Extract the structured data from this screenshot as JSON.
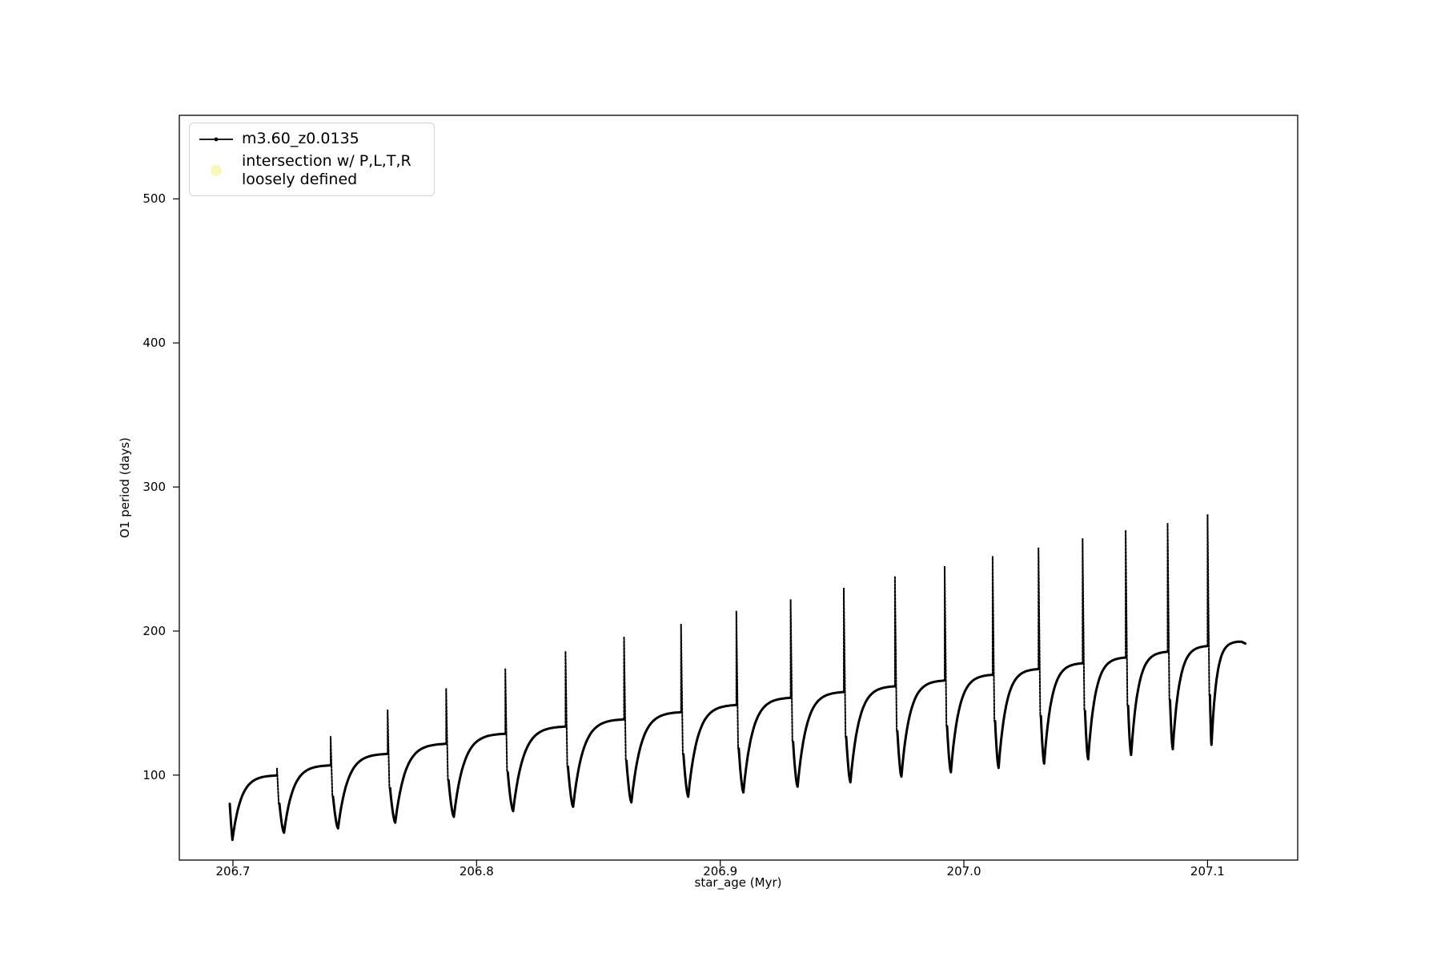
{
  "chart_data": {
    "type": "line",
    "title": "",
    "xlabel": "star_age (Myr)",
    "ylabel": "O1 period (days)",
    "xlim": [
      206.678,
      207.137
    ],
    "ylim": [
      41,
      558
    ],
    "grid": false,
    "legend_position": "upper left",
    "xticks": [
      206.7,
      206.8,
      206.9,
      207.0,
      207.1
    ],
    "xtick_labels": [
      "206.7",
      "206.8",
      "206.9",
      "207.0",
      "207.1"
    ],
    "yticks": [
      100,
      200,
      300,
      400,
      500
    ],
    "ytick_labels": [
      "100",
      "200",
      "300",
      "400",
      "500"
    ],
    "legend": {
      "entries": [
        {
          "type": "line-with-dot-marker",
          "color": "#000000",
          "label": "m3.60_z0.0135"
        },
        {
          "type": "scatter-circle",
          "color": "#faf7bd",
          "label_line1": "intersection w/ P,L,T,R",
          "label_line2": "loosely defined"
        }
      ]
    },
    "series": {
      "name": "m3.60_z0.0135",
      "color": "#000000",
      "description": "O1 pulsation period vs stellar age; sawtooth cycles: smooth saturating rise to a plateau, a narrow vertical spike up, then a sharp V-dip to a minimum before the next rise.",
      "start": {
        "age": 206.6987,
        "value": 80,
        "dip_age": 206.6998,
        "dip_value": 55
      },
      "end": {
        "peak_age": 207.1125,
        "peak_value": 193,
        "age": 207.1155,
        "value": 191.3
      },
      "cycles": [
        {
          "spike_age": 206.7181,
          "plateau": 100,
          "peak": 105,
          "min_after": 60
        },
        {
          "spike_age": 206.7401,
          "plateau": 107,
          "peak": 127,
          "min_after": 63
        },
        {
          "spike_age": 206.7635,
          "plateau": 115,
          "peak": 145,
          "min_after": 67
        },
        {
          "spike_age": 206.7875,
          "plateau": 122,
          "peak": 160,
          "min_after": 71
        },
        {
          "spike_age": 206.8118,
          "plateau": 129,
          "peak": 174,
          "min_after": 75
        },
        {
          "spike_age": 206.8365,
          "plateau": 134,
          "peak": 186,
          "min_after": 78
        },
        {
          "spike_age": 206.8605,
          "plateau": 139,
          "peak": 196,
          "min_after": 81
        },
        {
          "spike_age": 206.8839,
          "plateau": 144,
          "peak": 205,
          "min_after": 85
        },
        {
          "spike_age": 206.9066,
          "plateau": 149,
          "peak": 214,
          "min_after": 88
        },
        {
          "spike_age": 206.9289,
          "plateau": 154,
          "peak": 222,
          "min_after": 92
        },
        {
          "spike_age": 206.9507,
          "plateau": 158,
          "peak": 230,
          "min_after": 95
        },
        {
          "spike_age": 206.9717,
          "plateau": 162,
          "peak": 238,
          "min_after": 99
        },
        {
          "spike_age": 206.9921,
          "plateau": 166,
          "peak": 245,
          "min_after": 102
        },
        {
          "spike_age": 207.0118,
          "plateau": 170,
          "peak": 252,
          "min_after": 105
        },
        {
          "spike_age": 207.0306,
          "plateau": 174,
          "peak": 258,
          "min_after": 108
        },
        {
          "spike_age": 207.0487,
          "plateau": 178,
          "peak": 264,
          "min_after": 111
        },
        {
          "spike_age": 207.0664,
          "plateau": 182,
          "peak": 270,
          "min_after": 114
        },
        {
          "spike_age": 207.0836,
          "plateau": 186,
          "peak": 275,
          "min_after": 118
        },
        {
          "spike_age": 207.1,
          "plateau": 190,
          "peak": 281,
          "min_after": 121
        }
      ]
    }
  }
}
